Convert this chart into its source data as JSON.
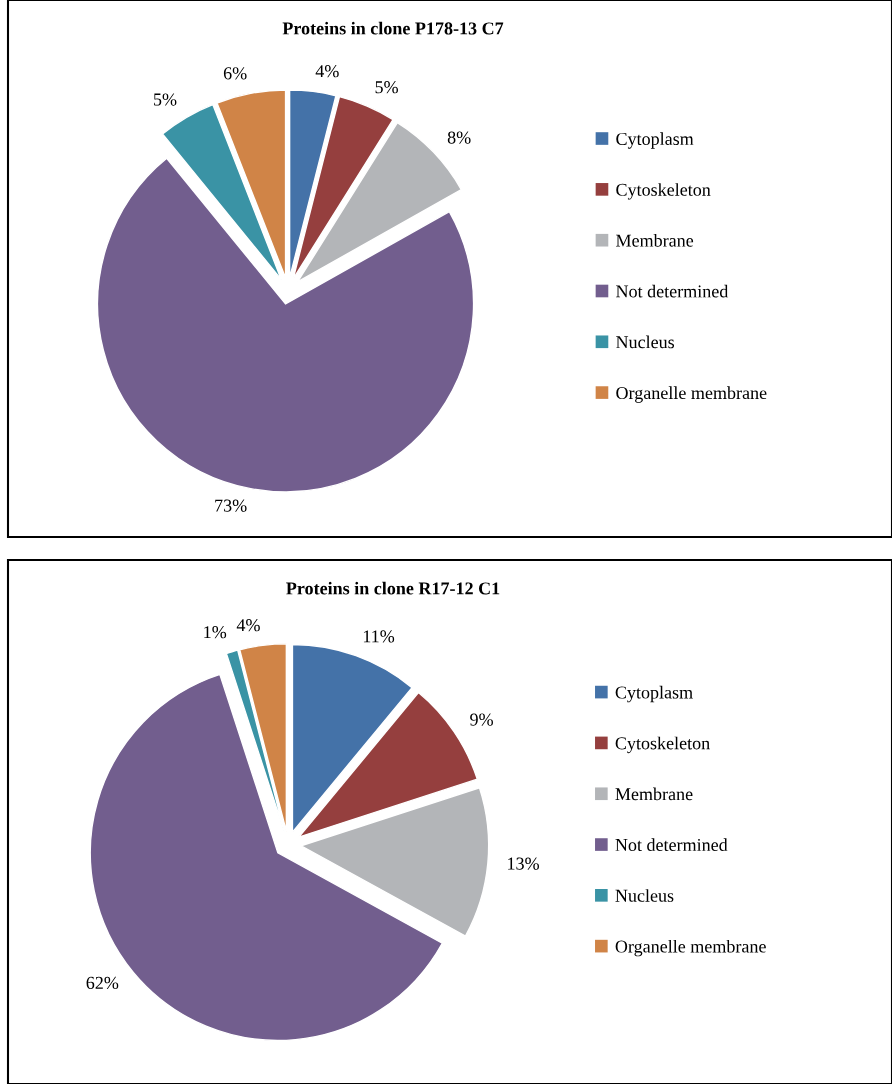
{
  "chart_data": [
    {
      "type": "pie",
      "title": "Proteins in clone P178-13 C7",
      "categories": [
        "Cytoplasm",
        "Cytoskeleton",
        "Membrane",
        "Not determined",
        "Nucleus",
        "Organelle membrane"
      ],
      "values": [
        4,
        5,
        8,
        73,
        5,
        6
      ],
      "value_labels": [
        "4%",
        "5%",
        "8%",
        "73%",
        "5%",
        "6%"
      ],
      "colors": [
        "#4472a8",
        "#953f3e",
        "#b3b5b8",
        "#725e8e",
        "#3a93a5",
        "#d08447"
      ],
      "legend": "right"
    },
    {
      "type": "pie",
      "title": "Proteins in clone R17-12 C1",
      "categories": [
        "Cytoplasm",
        "Cytoskeleton",
        "Membrane",
        "Not determined",
        "Nucleus",
        "Organelle membrane"
      ],
      "values": [
        11,
        9,
        13,
        62,
        1,
        4
      ],
      "value_labels": [
        "11%",
        "9%",
        "13%",
        "62%",
        "1%",
        "4%"
      ],
      "colors": [
        "#4472a8",
        "#953f3e",
        "#b3b5b8",
        "#725e8e",
        "#3a93a5",
        "#d08447"
      ],
      "legend": "right"
    }
  ]
}
